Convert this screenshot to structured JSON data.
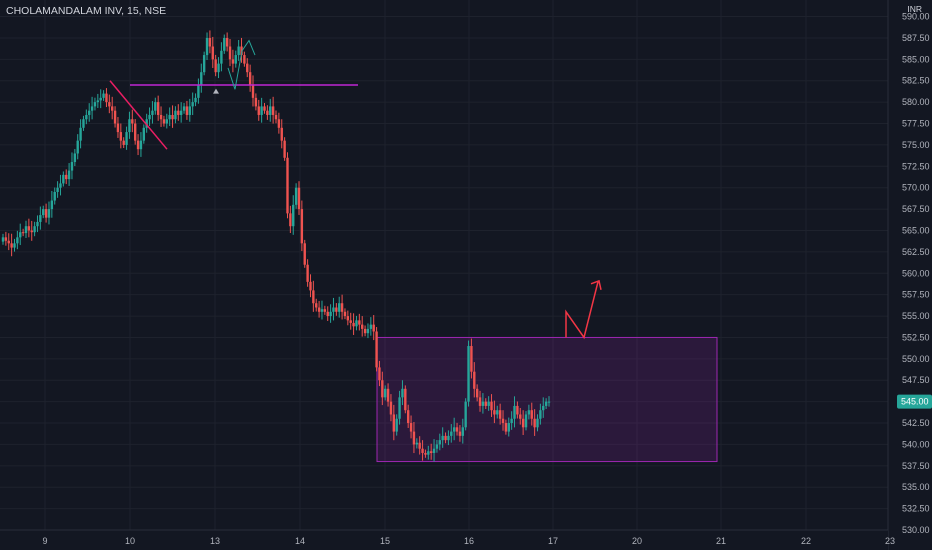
{
  "header": {
    "symbol_line": "CHOLAMANDALAM INV, 15, NSE",
    "currency": "INR"
  },
  "colors": {
    "background": "#131722",
    "grid": "#1e222d",
    "axis_text": "#b2b5be",
    "up": "#26a69a",
    "down": "#ef5350",
    "resistance_line": "#c026d3",
    "trendline": "#e91e63",
    "zone_border": "#9c27b0",
    "zone_fill": "rgba(156,39,176,0.18)",
    "projection_arrow": "#f23645",
    "price_badge": "#26a69a"
  },
  "chart_data": {
    "type": "candlestick",
    "title": "CHOLAMANDALAM INV, 15, NSE",
    "y_axis_unit": "INR",
    "x_tick_labels": [
      "9",
      "10",
      "13",
      "14",
      "15",
      "16",
      "17",
      "20",
      "21",
      "22",
      "23"
    ],
    "y_ticks": [
      "530.00",
      "532.50",
      "535.00",
      "537.50",
      "540.00",
      "542.50",
      "545.00",
      "547.50",
      "550.00",
      "552.50",
      "555.00",
      "557.50",
      "560.00",
      "562.50",
      "565.00",
      "567.50",
      "570.00",
      "572.50",
      "575.00",
      "577.50",
      "580.00",
      "582.50",
      "585.00",
      "587.50",
      "590.00"
    ],
    "ylim": [
      530.0,
      591.0
    ],
    "last_price_label": "545.00",
    "last_price": 545.0,
    "close_series": [
      564.2,
      563.8,
      563.5,
      563.0,
      563.5,
      564.2,
      564.8,
      564.7,
      565.5,
      565.0,
      564.8,
      565.5,
      566.0,
      566.8,
      567.5,
      566.5,
      567.5,
      568.5,
      569.5,
      570.0,
      570.5,
      571.5,
      571.0,
      572.0,
      573.0,
      574.0,
      575.5,
      577.0,
      578.0,
      578.5,
      579.0,
      579.5,
      580.0,
      580.2,
      580.5,
      581.0,
      580.0,
      579.5,
      579.0,
      577.5,
      576.5,
      575.5,
      575.0,
      576.5,
      578.0,
      577.5,
      575.5,
      574.5,
      575.5,
      577.0,
      578.0,
      578.5,
      579.0,
      580.0,
      578.5,
      578.0,
      577.5,
      578.0,
      578.5,
      578.0,
      579.0,
      578.5,
      579.0,
      579.5,
      578.5,
      579.5,
      580.0,
      580.5,
      582.0,
      583.5,
      585.5,
      587.5,
      586.5,
      585.0,
      583.5,
      584.5,
      586.0,
      587.5,
      586.5,
      585.0,
      584.5,
      585.5,
      586.5,
      585.5,
      584.5,
      583.5,
      582.0,
      580.5,
      579.5,
      578.5,
      579.5,
      579.0,
      578.5,
      579.5,
      578.5,
      578.0,
      577.0,
      575.5,
      573.5,
      567.0,
      565.5,
      568.0,
      570.0,
      567.5,
      563.5,
      561.0,
      559.0,
      558.0,
      556.5,
      556.0,
      555.5,
      555.8,
      555.5,
      555.0,
      555.5,
      556.0,
      555.5,
      556.5,
      555.5,
      555.0,
      554.5,
      554.2,
      553.8,
      554.5,
      554.0,
      553.5,
      553.0,
      553.5,
      554.0,
      553.2,
      549.0,
      547.5,
      545.5,
      546.5,
      545.0,
      543.5,
      541.5,
      543.0,
      545.5,
      546.5,
      544.0,
      542.5,
      541.5,
      540.0,
      540.2,
      539.5,
      539.0,
      538.8,
      539.2,
      539.0,
      539.5,
      540.0,
      540.5,
      541.0,
      540.5,
      541.0,
      541.5,
      542.0,
      541.5,
      541.0,
      542.0,
      545.0,
      551.5,
      548.5,
      546.5,
      545.5,
      544.5,
      545.0,
      544.5,
      545.0,
      544.0,
      543.5,
      544.0,
      543.0,
      542.5,
      541.5,
      542.5,
      543.0,
      544.5,
      543.5,
      543.0,
      542.0,
      543.5,
      544.0,
      543.0,
      542.0,
      543.0,
      544.0,
      544.5,
      545.0,
      545.0
    ]
  },
  "annotations": {
    "resistance_price": 582.0,
    "trendline_from": {
      "price": 582.5
    },
    "trendline_to": {
      "price": 574.5
    },
    "zone": {
      "top": 552.5,
      "bottom": 538.0
    },
    "projection": {
      "start": 552.5,
      "peak": 555.5,
      "trough": 552.5,
      "target": 559.0
    }
  }
}
